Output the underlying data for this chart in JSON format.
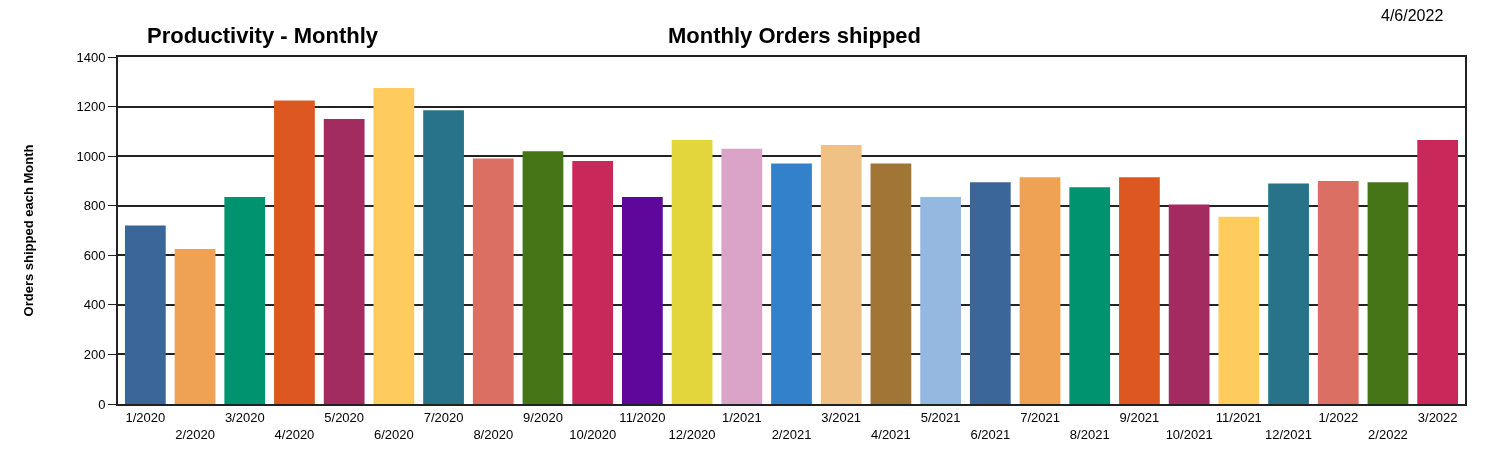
{
  "chart_data": {
    "type": "bar",
    "title": "Productivity - Monthly",
    "subtitle": "Monthly Orders shipped",
    "ylabel": "Orders shipped each Month",
    "annotations": [
      "4/6/2022"
    ],
    "categories": [
      "1/2020",
      "2/2020",
      "3/2020",
      "4/2020",
      "5/2020",
      "6/2020",
      "7/2020",
      "8/2020",
      "9/2020",
      "10/2020",
      "11/2020",
      "12/2020",
      "1/2021",
      "2/2021",
      "3/2021",
      "4/2021",
      "5/2021",
      "6/2021",
      "7/2021",
      "8/2021",
      "9/2021",
      "10/2021",
      "11/2021",
      "12/2021",
      "1/2022",
      "2/2022",
      "3/2022"
    ],
    "values": [
      720,
      625,
      835,
      1225,
      1150,
      1275,
      1185,
      990,
      1020,
      980,
      835,
      1065,
      1030,
      970,
      1045,
      970,
      835,
      895,
      915,
      875,
      915,
      805,
      755,
      890,
      900,
      895,
      1065
    ],
    "colors": [
      "#3b6699",
      "#efa253",
      "#00936f",
      "#dc5820",
      "#a22c5f",
      "#fdcb5e",
      "#28738a",
      "#db6f63",
      "#457516",
      "#c8285a",
      "#5f079b",
      "#e2d63c",
      "#daa3c8",
      "#3380cb",
      "#f0c185",
      "#a07535",
      "#95b8e1",
      "#3b6699",
      "#efa253",
      "#00936f",
      "#dc5820",
      "#a22c5f",
      "#fdcb5e",
      "#28738a",
      "#db6f63",
      "#457516",
      "#c8285a"
    ],
    "ylim": [
      0,
      1400
    ],
    "yticks": [
      0,
      200,
      400,
      600,
      800,
      1000,
      1200,
      1400
    ],
    "grid": "y"
  }
}
